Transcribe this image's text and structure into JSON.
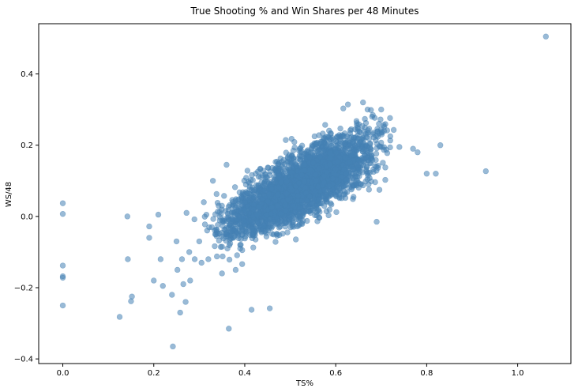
{
  "chart_data": {
    "type": "scatter",
    "title": "True Shooting % and Win Shares per 48 Minutes",
    "xlabel": "TS%",
    "ylabel": "WS/48",
    "xlim": [
      -0.053,
      1.117
    ],
    "ylim": [
      -0.413,
      0.541
    ],
    "x_ticks": [
      0.0,
      0.2,
      0.4,
      0.6,
      0.8,
      1.0
    ],
    "x_tick_labels": [
      "0.0",
      "0.2",
      "0.4",
      "0.6",
      "0.8",
      "1.0"
    ],
    "y_ticks": [
      -0.4,
      -0.2,
      0.0,
      0.2,
      0.4
    ],
    "y_tick_labels": [
      "−0.4",
      "−0.2",
      "0.0",
      "0.2",
      "0.4"
    ],
    "grid": false,
    "legend": "none",
    "marker_color": "#4682b4",
    "marker_alpha": 0.55,
    "outliers": {
      "x": [
        0,
        0,
        0,
        0,
        0,
        0,
        0.125,
        0.142,
        0.143,
        0.15,
        0.152,
        0.19,
        0.19,
        0.2,
        0.21,
        0.215,
        0.22,
        0.24,
        0.242,
        0.25,
        0.252,
        0.258,
        0.262,
        0.265,
        0.27,
        0.272,
        0.278,
        0.28,
        0.29,
        0.3,
        0.305,
        0.31,
        0.32,
        0.33,
        0.335,
        0.35,
        0.36,
        0.36,
        0.365,
        0.38,
        0.38,
        0.39,
        0.39,
        0.415,
        0.455,
        0.66,
        0.67,
        0.68,
        0.69,
        0.695,
        0.7,
        0.72,
        0.74,
        0.77,
        0.78,
        0.8,
        0.82,
        0.83,
        0.93,
        1.062
      ],
      "y": [
        0.037,
        0.007,
        -0.138,
        -0.168,
        -0.172,
        -0.25,
        -0.282,
        0.0,
        -0.12,
        -0.238,
        -0.225,
        -0.028,
        -0.06,
        -0.18,
        0.005,
        -0.12,
        -0.195,
        -0.22,
        -0.365,
        -0.07,
        -0.15,
        -0.27,
        -0.12,
        -0.19,
        -0.24,
        0.01,
        -0.1,
        -0.18,
        -0.12,
        -0.07,
        -0.13,
        0.04,
        -0.12,
        0.1,
        -0.05,
        -0.16,
        -0.05,
        0.145,
        -0.315,
        0.025,
        -0.15,
        -0.09,
        -0.08,
        -0.262,
        -0.258,
        0.32,
        0.3,
        0.28,
        -0.015,
        0.26,
        0.3,
        0.225,
        0.195,
        0.19,
        0.18,
        0.12,
        0.12,
        0.2,
        0.127,
        0.505
      ]
    },
    "cluster": {
      "center_x": [
        0.36,
        0.42,
        0.48,
        0.54,
        0.6,
        0.66
      ],
      "center_y": [
        -0.04,
        0.0,
        0.05,
        0.1,
        0.15,
        0.19
      ],
      "spread_x": [
        0.03,
        0.035,
        0.035,
        0.035,
        0.035,
        0.03
      ],
      "spread_y": [
        0.035,
        0.035,
        0.035,
        0.035,
        0.04,
        0.045
      ],
      "point_count": [
        80,
        400,
        900,
        1000,
        700,
        150
      ]
    }
  }
}
